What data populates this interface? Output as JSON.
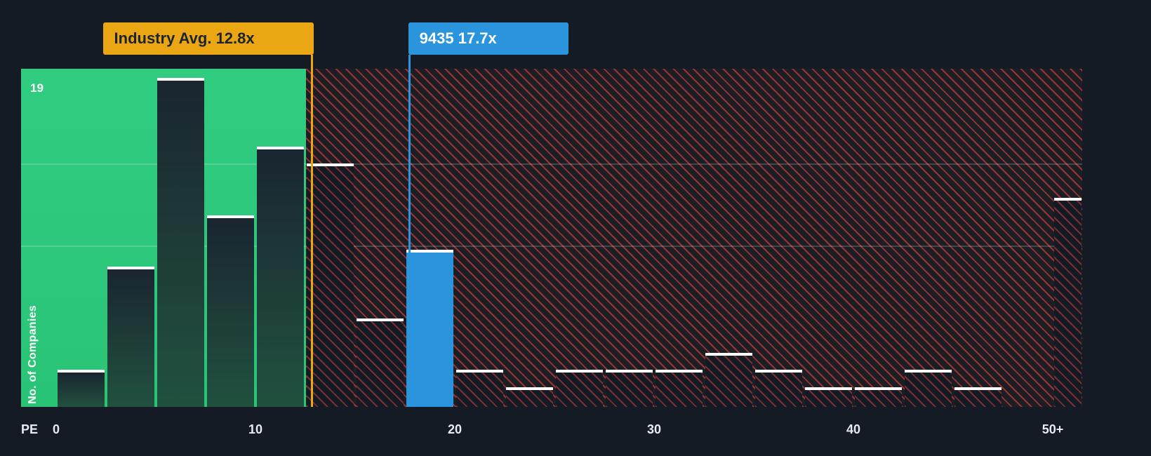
{
  "chart_data": {
    "type": "bar",
    "xlabel": "PE",
    "ylabel": "No. of Companies",
    "y_max_label": "19",
    "xlim": [
      0,
      51.5
    ],
    "ylim": [
      0,
      19.7
    ],
    "grid": "horizontal",
    "legend": "none",
    "x_ticks": [
      {
        "label": "0",
        "value": 0
      },
      {
        "label": "10",
        "value": 10
      },
      {
        "label": "20",
        "value": 20
      },
      {
        "label": "30",
        "value": 30
      },
      {
        "label": "40",
        "value": 40
      },
      {
        "label": "50+",
        "value": 50
      }
    ],
    "bins": [
      {
        "x0": 0,
        "x1": 2.5,
        "count": 2,
        "style": "green"
      },
      {
        "x0": 2.5,
        "x1": 5,
        "count": 8,
        "style": "green"
      },
      {
        "x0": 5,
        "x1": 7.5,
        "count": 19,
        "style": "green"
      },
      {
        "x0": 7.5,
        "x1": 10,
        "count": 11,
        "style": "green"
      },
      {
        "x0": 10,
        "x1": 12.5,
        "count": 15,
        "style": "green"
      },
      {
        "x0": 12.5,
        "x1": 15,
        "count": 14,
        "style": "hatch"
      },
      {
        "x0": 15,
        "x1": 17.5,
        "count": 5,
        "style": "hatch"
      },
      {
        "x0": 17.5,
        "x1": 20,
        "count": 9,
        "style": "blue"
      },
      {
        "x0": 20,
        "x1": 22.5,
        "count": 2,
        "style": "hatch"
      },
      {
        "x0": 22.5,
        "x1": 25,
        "count": 1,
        "style": "hatch"
      },
      {
        "x0": 25,
        "x1": 27.5,
        "count": 2,
        "style": "hatch"
      },
      {
        "x0": 27.5,
        "x1": 30,
        "count": 2,
        "style": "hatch"
      },
      {
        "x0": 30,
        "x1": 32.5,
        "count": 2,
        "style": "hatch"
      },
      {
        "x0": 32.5,
        "x1": 35,
        "count": 3,
        "style": "hatch"
      },
      {
        "x0": 35,
        "x1": 37.5,
        "count": 2,
        "style": "hatch"
      },
      {
        "x0": 37.5,
        "x1": 40,
        "count": 1,
        "style": "hatch"
      },
      {
        "x0": 40,
        "x1": 42.5,
        "count": 1,
        "style": "hatch"
      },
      {
        "x0": 42.5,
        "x1": 45,
        "count": 2,
        "style": "hatch"
      },
      {
        "x0": 45,
        "x1": 47.5,
        "count": 1,
        "style": "hatch"
      },
      {
        "x0": 47.5,
        "x1": 50,
        "count": 0,
        "style": "hatch"
      },
      {
        "x0": 50,
        "x1": 51.5,
        "count": 12,
        "style": "hatch"
      }
    ],
    "industry_avg": {
      "label": "Industry Avg. 12.8x",
      "value": 12.8
    },
    "company": {
      "label": "9435 17.7x",
      "value": 17.7
    },
    "colors": {
      "background": "#141b24",
      "zone_green": "#2dc97e",
      "hatch_red": "#e0453a",
      "bar_blue": "#2a94dd",
      "callout_gold": "#eaa713",
      "bar_top_border": "#ffffff",
      "axis_text": "#e8ecf2",
      "label_dark_text": "#1b2430"
    }
  }
}
